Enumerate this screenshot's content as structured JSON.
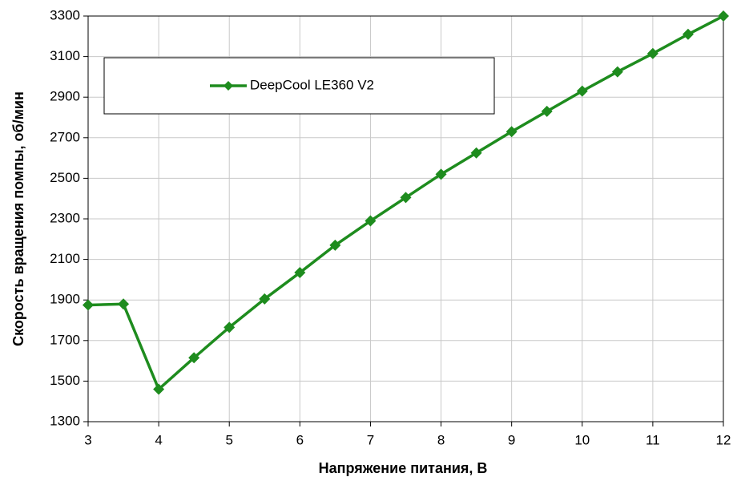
{
  "chart_data": {
    "type": "line",
    "x_label": "Напряжение питания, В",
    "y_label": "Скорость вращения помпы, об/мин",
    "x": [
      3,
      3.5,
      4,
      4.5,
      5,
      5.5,
      6,
      6.5,
      7,
      7.5,
      8,
      8.5,
      9,
      9.5,
      10,
      10.5,
      11,
      11.5,
      12
    ],
    "series": [
      {
        "name": "DeepCool LE360 V2",
        "color": "#1e8c1e",
        "values": [
          1875,
          1880,
          1460,
          1615,
          1765,
          1905,
          2035,
          2170,
          2290,
          2405,
          2520,
          2625,
          2730,
          2830,
          2930,
          3025,
          3115,
          3210,
          3300
        ]
      }
    ],
    "xlim": [
      3,
      12
    ],
    "xticks": [
      3,
      4,
      5,
      6,
      7,
      8,
      9,
      10,
      11,
      12
    ],
    "ylim": [
      1300,
      3300
    ],
    "yticks": [
      1300,
      1500,
      1700,
      1900,
      2100,
      2300,
      2500,
      2700,
      2900,
      3100,
      3300
    ],
    "grid": true,
    "legend": "top-left"
  }
}
